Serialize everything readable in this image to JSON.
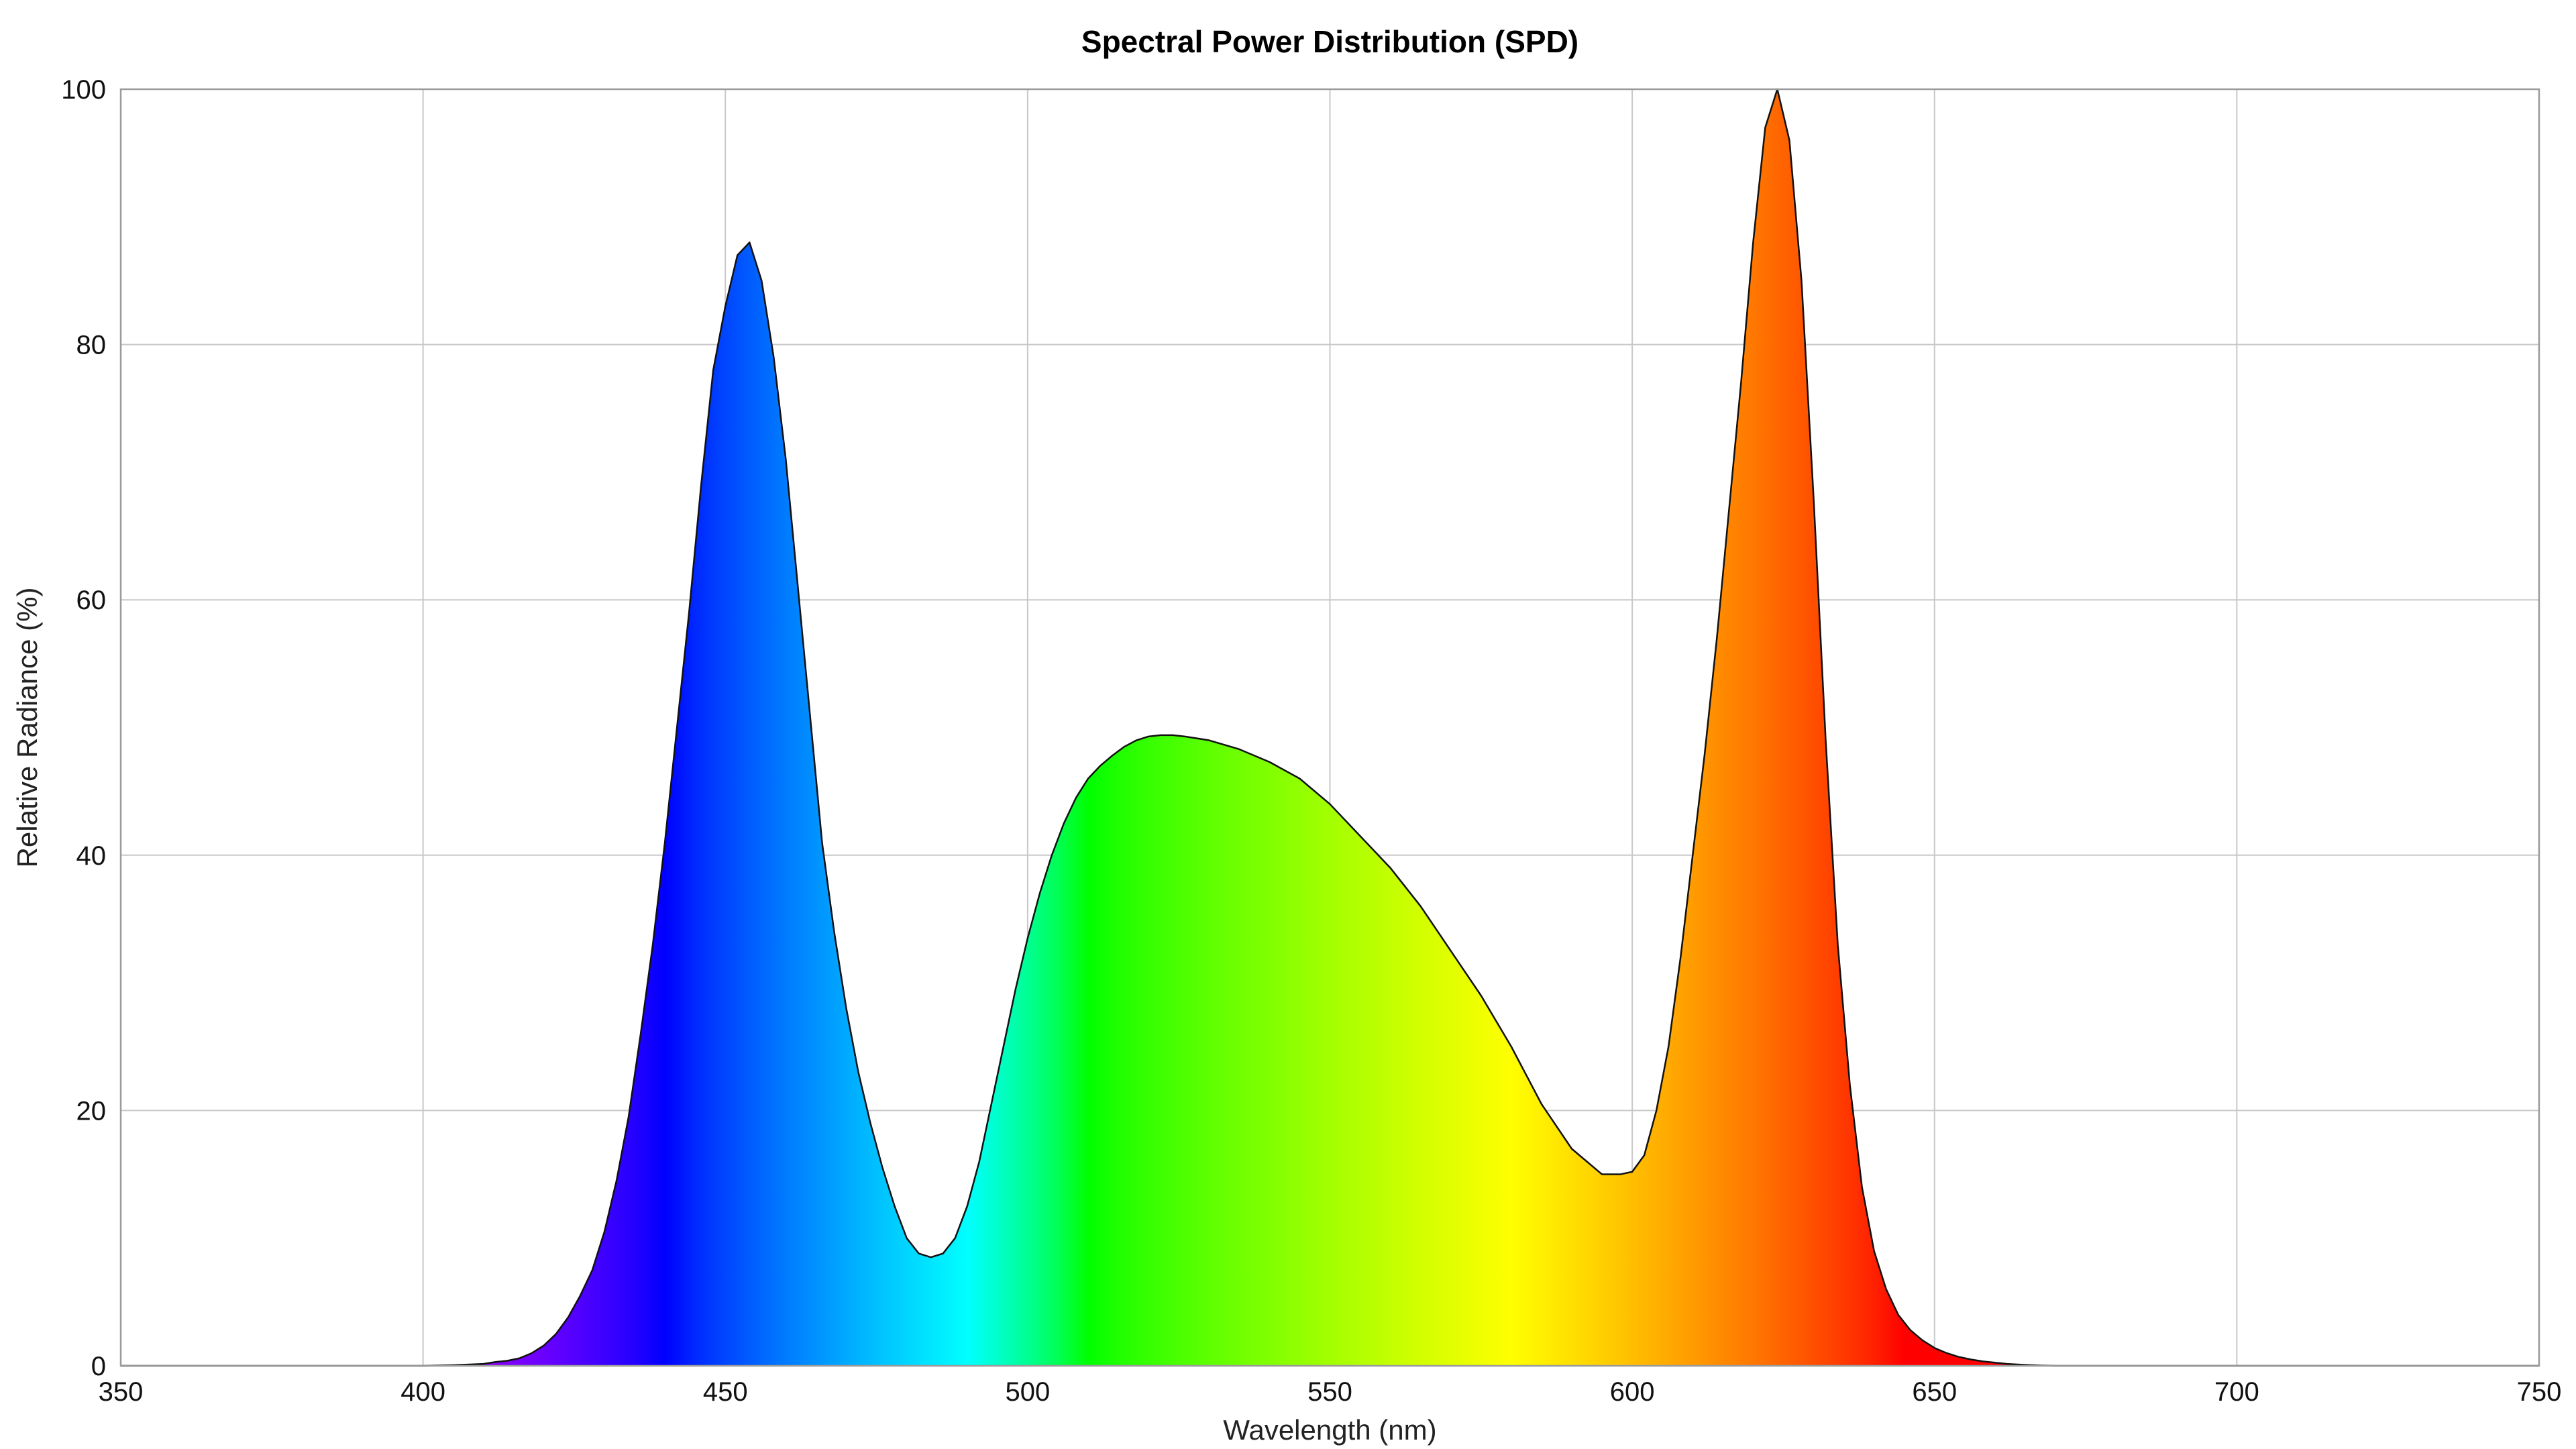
{
  "chart_data": {
    "type": "area",
    "title": "Spectral Power Distribution (SPD)",
    "xlabel": "Wavelength (nm)",
    "ylabel": "Relative Radiance (%)",
    "xlim": [
      350,
      750
    ],
    "ylim": [
      0,
      100
    ],
    "xticks": [
      350,
      400,
      450,
      500,
      550,
      600,
      650,
      700,
      750
    ],
    "yticks": [
      0,
      20,
      40,
      60,
      80,
      100
    ],
    "grid": true,
    "fill": "spectral-gradient",
    "series": [
      {
        "x": [
          350,
          400,
          405,
          410,
          412,
          414,
          416,
          418,
          420,
          422,
          424,
          426,
          428,
          430,
          432,
          434,
          436,
          438,
          440,
          442,
          444,
          446,
          448,
          450,
          452,
          454,
          456,
          458,
          460,
          462,
          464,
          466,
          468,
          470,
          472,
          474,
          476,
          478,
          480,
          482,
          484,
          486,
          488,
          490,
          492,
          494,
          496,
          498,
          500,
          502,
          504,
          506,
          508,
          510,
          512,
          514,
          516,
          518,
          520,
          522,
          524,
          526,
          530,
          535,
          540,
          545,
          550,
          555,
          560,
          565,
          570,
          575,
          580,
          585,
          590,
          595,
          598,
          600,
          602,
          604,
          606,
          608,
          610,
          612,
          614,
          616,
          618,
          620,
          622,
          624,
          626,
          628,
          630,
          632,
          634,
          636,
          638,
          640,
          642,
          644,
          646,
          648,
          650,
          652,
          654,
          656,
          658,
          660,
          662,
          664,
          666,
          668,
          670,
          672,
          675,
          750
        ],
        "values": [
          0,
          0,
          0.05,
          0.15,
          0.3,
          0.4,
          0.6,
          1.0,
          1.6,
          2.5,
          3.8,
          5.5,
          7.5,
          10.5,
          14.5,
          19.5,
          26,
          33,
          41,
          50,
          59,
          69,
          78,
          83,
          87,
          88,
          85,
          79,
          71,
          61,
          51,
          41,
          34,
          28,
          23,
          19,
          15.5,
          12.5,
          10,
          8.8,
          8.5,
          8.8,
          10,
          12.5,
          16,
          20.5,
          25,
          29.5,
          33.5,
          37,
          40,
          42.5,
          44.5,
          46,
          47,
          47.8,
          48.5,
          49,
          49.3,
          49.4,
          49.4,
          49.3,
          49,
          48.3,
          47.3,
          46,
          44,
          41.5,
          39,
          36,
          32.5,
          29,
          25,
          20.5,
          17,
          15,
          15,
          15.2,
          16.5,
          20,
          25,
          32,
          40,
          48,
          57,
          67,
          77,
          88,
          97,
          100,
          96,
          85,
          68,
          49,
          33,
          22,
          14,
          9,
          6,
          4,
          2.8,
          2,
          1.4,
          1,
          0.7,
          0.5,
          0.35,
          0.25,
          0.15,
          0.1,
          0.05,
          0.02,
          0,
          0,
          0,
          0
        ]
      }
    ]
  }
}
